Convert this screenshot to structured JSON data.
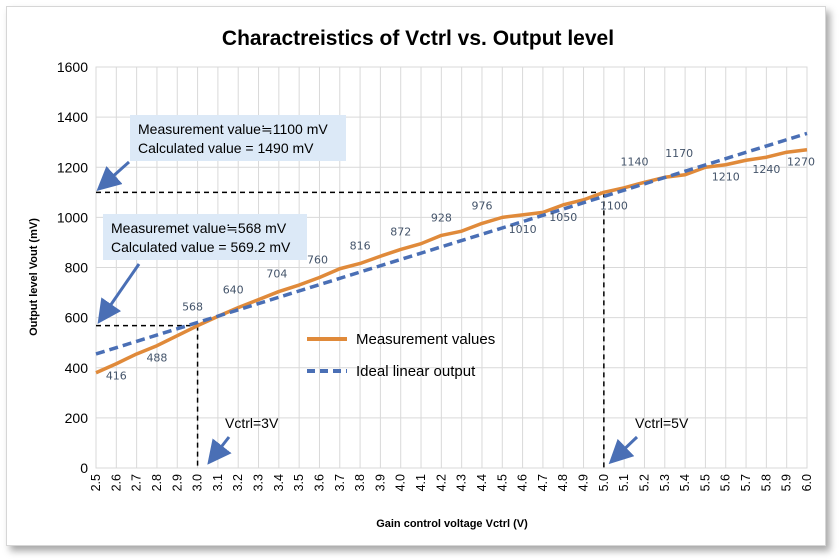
{
  "chart_data": {
    "type": "line",
    "title": "Charactreistics of Vctrl vs. Output level",
    "xlabel": "Gain control voltage Vctrl (V)",
    "ylabel": "Output level Vout (mV)",
    "xlim": [
      2.5,
      6.0
    ],
    "ylim": [
      0,
      1600
    ],
    "yticks": [
      "0",
      "200",
      "400",
      "600",
      "800",
      "1000",
      "1200",
      "1400",
      "1600"
    ],
    "xticks": [
      "2.5",
      "2.6",
      "2.7",
      "2.8",
      "2.9",
      "3.0",
      "3.1",
      "3.2",
      "3.3",
      "3.4",
      "3.5",
      "3.6",
      "3.7",
      "3.8",
      "3.9",
      "4.0",
      "4.1",
      "4.2",
      "4.3",
      "4.4",
      "4.5",
      "4.6",
      "4.7",
      "4.8",
      "4.9",
      "5.0",
      "5.1",
      "5.2",
      "5.3",
      "5.4",
      "5.5",
      "5.6",
      "5.7",
      "5.8",
      "5.9",
      "6.0"
    ],
    "grid": true,
    "legend_position": "center",
    "series": [
      {
        "name": "Measurement values",
        "color": "#e08a3a",
        "style": "solid",
        "x": [
          2.5,
          2.6,
          2.7,
          2.8,
          2.9,
          3.0,
          3.1,
          3.2,
          3.3,
          3.4,
          3.5,
          3.6,
          3.7,
          3.8,
          3.9,
          4.0,
          4.1,
          4.2,
          4.3,
          4.4,
          4.5,
          4.6,
          4.7,
          4.8,
          4.9,
          5.0,
          5.1,
          5.2,
          5.3,
          5.4,
          5.5,
          5.6,
          5.7,
          5.8,
          5.9,
          6.0
        ],
        "values": [
          380,
          416,
          455,
          488,
          528,
          568,
          605,
          640,
          672,
          704,
          730,
          760,
          795,
          816,
          845,
          872,
          895,
          928,
          945,
          976,
          1000,
          1010,
          1020,
          1050,
          1070,
          1100,
          1118,
          1140,
          1160,
          1170,
          1200,
          1210,
          1228,
          1240,
          1260,
          1270
        ],
        "labels": [
          {
            "x": 2.6,
            "y": 416,
            "text": "416"
          },
          {
            "x": 2.8,
            "y": 488,
            "text": "488"
          },
          {
            "x": 3.0,
            "y": 568,
            "text": "568"
          },
          {
            "x": 3.2,
            "y": 640,
            "text": "640"
          },
          {
            "x": 3.4,
            "y": 704,
            "text": "704"
          },
          {
            "x": 3.6,
            "y": 760,
            "text": "760"
          },
          {
            "x": 3.8,
            "y": 816,
            "text": "816"
          },
          {
            "x": 4.0,
            "y": 872,
            "text": "872"
          },
          {
            "x": 4.2,
            "y": 928,
            "text": "928"
          },
          {
            "x": 4.4,
            "y": 976,
            "text": "976"
          },
          {
            "x": 4.6,
            "y": 1010,
            "text": "1010"
          },
          {
            "x": 4.8,
            "y": 1050,
            "text": "1050"
          },
          {
            "x": 5.0,
            "y": 1100,
            "text": "1100"
          },
          {
            "x": 5.2,
            "y": 1140,
            "text": "1140"
          },
          {
            "x": 5.4,
            "y": 1170,
            "text": "1170"
          },
          {
            "x": 5.6,
            "y": 1210,
            "text": "1210"
          },
          {
            "x": 5.8,
            "y": 1240,
            "text": "1240"
          },
          {
            "x": 6.0,
            "y": 1270,
            "text": "1270"
          }
        ]
      },
      {
        "name": "Ideal linear output",
        "color": "#4a6fb5",
        "style": "dashed",
        "x": [
          2.5,
          6.0
        ],
        "values": [
          455,
          1335
        ]
      }
    ],
    "reference_lines": [
      {
        "x": 3.0,
        "y": 568,
        "label": "Vctrl=3V"
      },
      {
        "x": 5.0,
        "y": 1100,
        "label": "Vctrl=5V"
      }
    ],
    "annotations": [
      {
        "lines": [
          "Measurement value≒1100 mV",
          "Calculated value = 1490 mV"
        ]
      },
      {
        "lines": [
          "Measuremet value≒568 mV",
          "Calculated value = 569.2 mV"
        ]
      }
    ]
  }
}
